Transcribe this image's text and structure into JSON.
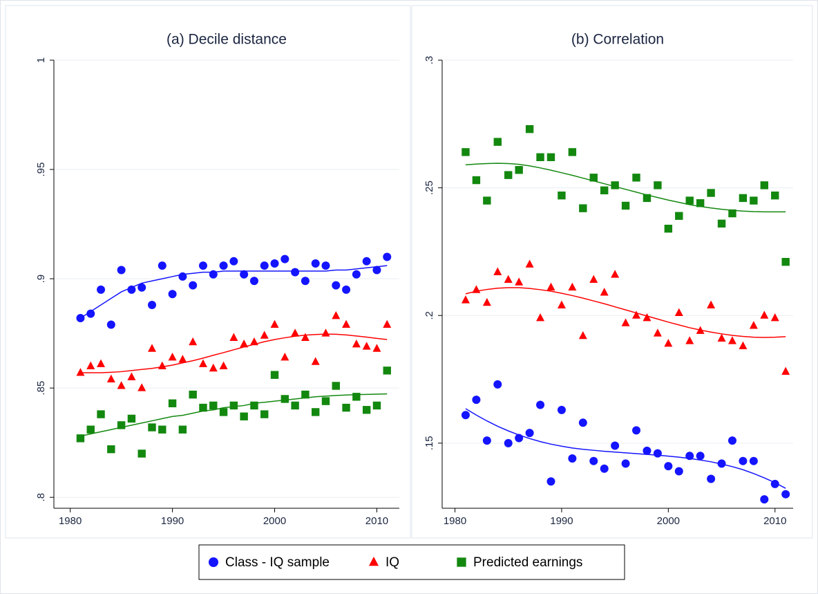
{
  "chart_data": [
    {
      "type": "scatter",
      "title": "(a) Decile distance",
      "x": [
        1981,
        1982,
        1983,
        1984,
        1985,
        1986,
        1987,
        1988,
        1989,
        1990,
        1991,
        1992,
        1993,
        1994,
        1995,
        1996,
        1997,
        1998,
        1999,
        2000,
        2001,
        2002,
        2003,
        2004,
        2005,
        2006,
        2007,
        2008,
        2009,
        2010,
        2011
      ],
      "xlim": [
        1978.4,
        2012.2
      ],
      "xticks": [
        1980,
        1990,
        2000,
        2010
      ],
      "ylim": [
        0.795,
        1
      ],
      "yticks": [
        {
          "value": 0.8,
          "label": ".8"
        },
        {
          "value": 0.85,
          "label": ".85"
        },
        {
          "value": 0.9,
          "label": ".9"
        },
        {
          "value": 0.95,
          "label": ".95"
        },
        1
      ],
      "grid": true,
      "series": [
        {
          "name": "Class - IQ sample",
          "color": "#1414ff",
          "marker": "circle",
          "values": [
            0.882,
            0.884,
            0.895,
            0.879,
            0.904,
            0.895,
            0.896,
            0.888,
            0.906,
            0.893,
            0.901,
            0.897,
            0.906,
            0.902,
            0.906,
            0.908,
            0.902,
            0.899,
            0.906,
            0.907,
            0.909,
            0.903,
            0.899,
            0.907,
            0.906,
            0.897,
            0.895,
            0.902,
            0.908,
            0.904,
            0.91
          ],
          "fit": [
            0.882,
            0.885,
            0.888,
            0.891,
            0.894,
            0.896,
            0.898,
            0.899,
            0.9,
            0.901,
            0.902,
            0.9025,
            0.903,
            0.903,
            0.9035,
            0.9035,
            0.9035,
            0.9035,
            0.9035,
            0.9035,
            0.9035,
            0.9035,
            0.9035,
            0.9035,
            0.9035,
            0.904,
            0.904,
            0.9045,
            0.905,
            0.9055,
            0.906
          ]
        },
        {
          "name": "IQ",
          "color": "#ff0000",
          "marker": "triangle",
          "values": [
            0.857,
            0.86,
            0.861,
            0.854,
            0.851,
            0.855,
            0.85,
            0.868,
            0.86,
            0.864,
            0.863,
            0.871,
            0.861,
            0.859,
            0.86,
            0.873,
            0.87,
            0.871,
            0.874,
            0.879,
            0.864,
            0.875,
            0.873,
            0.862,
            0.875,
            0.883,
            0.879,
            0.87,
            0.869,
            0.868,
            0.879
          ],
          "fit": [
            0.857,
            0.857,
            0.857,
            0.8572,
            0.8575,
            0.858,
            0.8585,
            0.859,
            0.8597,
            0.8605,
            0.8615,
            0.8625,
            0.8637,
            0.865,
            0.8662,
            0.8675,
            0.8688,
            0.87,
            0.8712,
            0.8722,
            0.873,
            0.8737,
            0.8742,
            0.8745,
            0.8747,
            0.8746,
            0.8743,
            0.8738,
            0.8733,
            0.8727,
            0.8722
          ]
        },
        {
          "name": "Predicted earnings",
          "color": "#13880f",
          "marker": "square",
          "values": [
            0.827,
            0.831,
            0.838,
            0.822,
            0.833,
            0.836,
            0.82,
            0.832,
            0.831,
            0.843,
            0.831,
            0.847,
            0.841,
            0.842,
            0.839,
            0.842,
            0.837,
            0.842,
            0.838,
            0.856,
            0.845,
            0.842,
            0.847,
            0.839,
            0.844,
            0.851,
            0.841,
            0.846,
            0.84,
            0.842,
            0.858
          ],
          "fit": [
            0.828,
            0.829,
            0.83,
            0.831,
            0.832,
            0.833,
            0.834,
            0.835,
            0.836,
            0.837,
            0.8375,
            0.8385,
            0.8395,
            0.84,
            0.841,
            0.8415,
            0.842,
            0.843,
            0.8435,
            0.844,
            0.8445,
            0.845,
            0.8455,
            0.846,
            0.8463,
            0.8466,
            0.8468,
            0.847,
            0.8471,
            0.8472,
            0.8473
          ]
        }
      ]
    },
    {
      "type": "scatter",
      "title": "(b) Correlation",
      "x": [
        1981,
        1982,
        1983,
        1984,
        1985,
        1986,
        1987,
        1988,
        1989,
        1990,
        1991,
        1992,
        1993,
        1994,
        1995,
        1996,
        1997,
        1998,
        1999,
        2000,
        2001,
        2002,
        2003,
        2004,
        2005,
        2006,
        2007,
        2008,
        2009,
        2010,
        2011
      ],
      "xlim": [
        1978.8,
        2011.7
      ],
      "xticks": [
        1980,
        1990,
        2000,
        2010
      ],
      "ylim": [
        0.1245,
        0.3
      ],
      "yticks": [
        {
          "value": 0.15,
          "label": ".15"
        },
        {
          "value": 0.2,
          "label": ".2"
        },
        {
          "value": 0.25,
          "label": ".25"
        },
        {
          "value": 0.3,
          "label": ".3"
        }
      ],
      "grid": true,
      "series": [
        {
          "color": "#1414ff",
          "marker": "circle",
          "values": [
            0.161,
            0.167,
            0.151,
            0.173,
            0.15,
            0.152,
            0.154,
            0.165,
            0.135,
            0.163,
            0.144,
            0.158,
            0.143,
            0.14,
            0.149,
            0.142,
            0.155,
            0.147,
            0.146,
            0.141,
            0.139,
            0.145,
            0.145,
            0.136,
            0.142,
            0.151,
            0.143,
            0.143,
            0.128,
            0.134,
            0.13
          ],
          "fit": [
            0.1635,
            0.161,
            0.1587,
            0.1566,
            0.1548,
            0.1532,
            0.1518,
            0.1506,
            0.1496,
            0.1488,
            0.1481,
            0.1476,
            0.1472,
            0.1468,
            0.1465,
            0.1462,
            0.1459,
            0.1456,
            0.1453,
            0.1449,
            0.1445,
            0.144,
            0.1434,
            0.1427,
            0.1418,
            0.1408,
            0.1396,
            0.1381,
            0.1364,
            0.1345,
            0.1323
          ]
        },
        {
          "color": "#ff0000",
          "marker": "triangle",
          "values": [
            0.206,
            0.21,
            0.205,
            0.217,
            0.214,
            0.213,
            0.22,
            0.199,
            0.211,
            0.204,
            0.211,
            0.192,
            0.214,
            0.209,
            0.216,
            0.197,
            0.2,
            0.199,
            0.193,
            0.189,
            0.201,
            0.19,
            0.194,
            0.204,
            0.191,
            0.19,
            0.188,
            0.196,
            0.2,
            0.199,
            0.178
          ],
          "fit": [
            0.2085,
            0.2095,
            0.2102,
            0.2107,
            0.2109,
            0.2109,
            0.2106,
            0.2101,
            0.2095,
            0.2087,
            0.2078,
            0.2068,
            0.2057,
            0.2046,
            0.2034,
            0.2022,
            0.201,
            0.1998,
            0.1986,
            0.1974,
            0.1963,
            0.1952,
            0.1943,
            0.1935,
            0.1928,
            0.1922,
            0.1918,
            0.1915,
            0.1914,
            0.1915,
            0.1917
          ]
        },
        {
          "color": "#13880f",
          "marker": "square",
          "values": [
            0.264,
            0.253,
            0.245,
            0.268,
            0.255,
            0.257,
            0.273,
            0.262,
            0.262,
            0.247,
            0.264,
            0.242,
            0.254,
            0.249,
            0.251,
            0.243,
            0.254,
            0.246,
            0.251,
            0.234,
            0.239,
            0.245,
            0.244,
            0.248,
            0.236,
            0.24,
            0.246,
            0.245,
            0.251,
            0.247,
            0.221
          ],
          "fit": [
            0.259,
            0.2593,
            0.2595,
            0.2596,
            0.2595,
            0.2592,
            0.2586,
            0.2578,
            0.2569,
            0.2559,
            0.2549,
            0.2538,
            0.2527,
            0.2516,
            0.2505,
            0.2494,
            0.2483,
            0.2472,
            0.2462,
            0.2452,
            0.2443,
            0.2434,
            0.2427,
            0.2421,
            0.2416,
            0.2412,
            0.2409,
            0.2407,
            0.2406,
            0.2406,
            0.2406
          ]
        }
      ]
    }
  ]
}
